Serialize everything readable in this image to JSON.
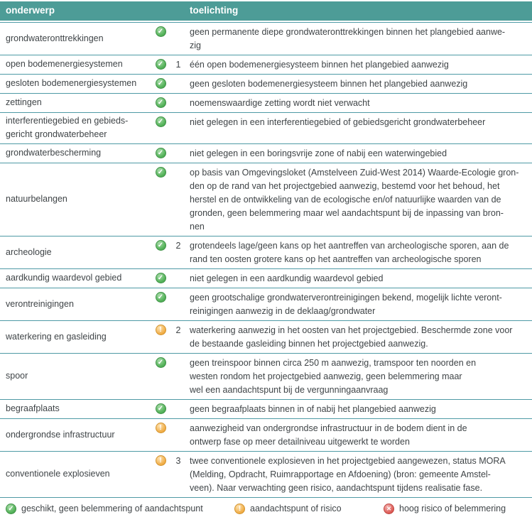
{
  "header": {
    "onderwerp": "onderwerp",
    "toelichting": "toelichting"
  },
  "rows": [
    {
      "label": "grondwateronttrekkingen",
      "status": "green",
      "num": "",
      "text": "geen permanente diepe grondwateronttrekkingen binnen het plangebied aanwe-\nzig"
    },
    {
      "label": "open bodemenergiesystemen",
      "status": "green",
      "num": "1",
      "text": "één open bodemenergiesysteem binnen het plangebied aanwezig"
    },
    {
      "label": "gesloten bodemenergiesystemen",
      "status": "green",
      "num": "",
      "text": "geen gesloten bodemenergiesysteem binnen het plangebied aanwezig"
    },
    {
      "label": "zettingen",
      "status": "green",
      "num": "",
      "text": "noemenswaardige zetting wordt niet verwacht"
    },
    {
      "label": "interferentiegebied en gebieds-\ngericht grondwaterbeheer",
      "status": "green",
      "num": "",
      "text": "niet gelegen in een interferentiegebied of gebiedsgericht grondwaterbeheer"
    },
    {
      "label": "grondwaterbescherming",
      "status": "green",
      "num": "",
      "text": "niet gelegen in een boringsvrije zone of nabij een waterwingebied"
    },
    {
      "label": "natuurbelangen",
      "status": "green",
      "num": "",
      "text": "op basis van Omgevingsloket (Amstelveen Zuid-West 2014) Waarde-Ecologie gron-\nden op de rand van het projectgebied aanwezig, bestemd voor het behoud, het\nherstel en de ontwikkeling van de ecologische en/of natuurlijke waarden van de\ngronden, geen belemmering maar wel aandachtspunt bij de inpassing van bron-\nnen"
    },
    {
      "label": "archeologie",
      "status": "green",
      "num": "2",
      "text": "grotendeels lage/geen kans op het aantreffen van archeologische sporen, aan de\nrand ten oosten grotere kans op het aantreffen van archeologische sporen"
    },
    {
      "label": "aardkundig waardevol gebied",
      "status": "green",
      "num": "",
      "text": "niet gelegen in een aardkundig waardevol gebied"
    },
    {
      "label": "verontreinigingen",
      "status": "green",
      "num": "",
      "text": "geen grootschalige grondwaterverontreinigingen bekend, mogelijk lichte veront-\nreinigingen aanwezig in de deklaag/grondwater"
    },
    {
      "label": "waterkering en gasleiding",
      "status": "orange",
      "num": "2",
      "text": "waterkering aanwezig in het oosten van het projectgebied. Beschermde zone voor\nde bestaande gasleiding binnen het projectgebied aanwezig."
    },
    {
      "label": "spoor",
      "status": "green",
      "num": "",
      "text": "geen treinspoor binnen circa 250 m aanwezig, tramspoor ten noorden en\nwesten rondom het projectgebied aanwezig, geen belemmering maar\nwel een aandachtspunt bij de vergunningaanvraag"
    },
    {
      "label": "begraafplaats",
      "status": "green",
      "num": "",
      "text": "geen begraafplaats binnen in of nabij het plangebied aanwezig"
    },
    {
      "label": "ondergrondse infrastructuur",
      "status": "orange",
      "num": "",
      "text": "aanwezigheid van ondergrondse infrastructuur in de bodem dient in de\nontwerp fase op meer detailniveau uitgewerkt te worden"
    },
    {
      "label": "conventionele explosieven",
      "status": "orange",
      "num": "3",
      "text": "twee conventionele explosieven in het projectgebied aangewezen, status MORA\n(Melding, Opdracht, Ruimrapportage en Afdoening) (bron: gemeente Amstel-\nveen). Naar verwachting geen risico, aandachtspunt tijdens realisatie fase."
    }
  ],
  "legend": [
    {
      "status": "green",
      "label": "geschikt, geen belemmering of aandachtspunt"
    },
    {
      "status": "orange",
      "label": "aandachtspunt of risico"
    },
    {
      "status": "red",
      "label": "hoog risico of belemmering"
    }
  ],
  "colors": {
    "header_teal": "#4d9c97",
    "row_border_teal": "#4e9aa5",
    "text_dark": "#3f4447",
    "status_green": "#55b35a",
    "status_orange": "#f0ac44",
    "status_red": "#dd5a55"
  }
}
